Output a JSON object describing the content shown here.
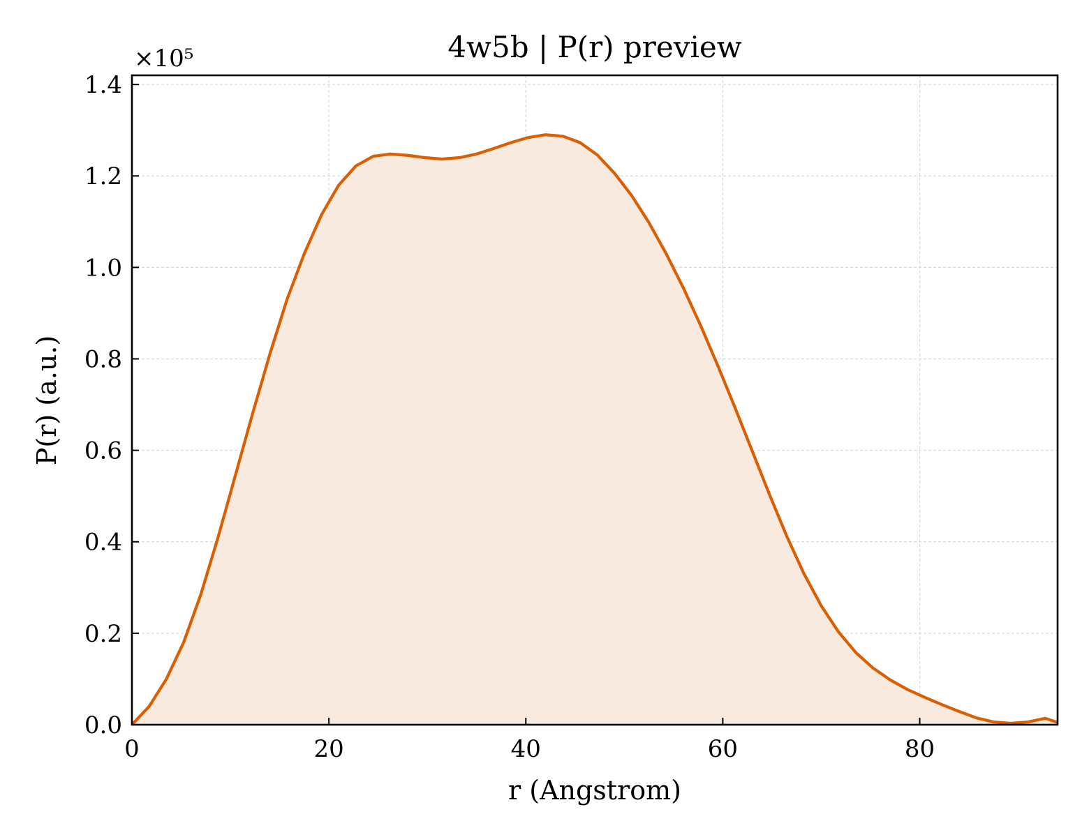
{
  "chart_data": {
    "type": "area",
    "title": "4w5b | P(r) preview",
    "xlabel": "r (Angstrom)",
    "ylabel": "P(r) (a.u.)",
    "y_multiplier_label": "×10⁵",
    "xlim": [
      0,
      94
    ],
    "ylim": [
      0,
      1.42
    ],
    "xticks": [
      0,
      20,
      40,
      60,
      80
    ],
    "yticks": [
      0.0,
      0.2,
      0.4,
      0.6,
      0.8,
      1.0,
      1.2,
      1.4
    ],
    "xtick_labels": [
      "0",
      "20",
      "40",
      "60",
      "80"
    ],
    "ytick_labels": [
      "0.0",
      "0.2",
      "0.4",
      "0.6",
      "0.8",
      "1.0",
      "1.2",
      "1.4"
    ],
    "grid": true,
    "line_color": "#d95f02",
    "fill_color": "#f8eadf",
    "series": [
      {
        "x": [
          0,
          1.75,
          3.5,
          5.25,
          7.0,
          8.75,
          10.5,
          12.25,
          14.0,
          15.75,
          17.5,
          19.25,
          21.0,
          22.75,
          24.5,
          26.25,
          28.0,
          29.75,
          31.5,
          33.25,
          35.0,
          36.75,
          38.5,
          40.25,
          42.0,
          43.75,
          45.5,
          47.25,
          49.0,
          50.75,
          52.5,
          54.25,
          56.0,
          57.75,
          59.5,
          61.25,
          63.0,
          64.75,
          66.5,
          68.25,
          70.0,
          71.75,
          73.5,
          75.25,
          77.0,
          78.75,
          80.5,
          82.25,
          84.0,
          85.75,
          87.5,
          89.25,
          91.0,
          92.75,
          94.0
        ],
        "values": [
          0.0,
          0.04,
          0.1,
          0.18,
          0.285,
          0.41,
          0.545,
          0.68,
          0.81,
          0.93,
          1.03,
          1.115,
          1.18,
          1.222,
          1.243,
          1.248,
          1.245,
          1.24,
          1.237,
          1.24,
          1.248,
          1.26,
          1.273,
          1.284,
          1.29,
          1.287,
          1.273,
          1.246,
          1.206,
          1.157,
          1.098,
          1.03,
          0.955,
          0.873,
          0.785,
          0.693,
          0.598,
          0.503,
          0.412,
          0.33,
          0.26,
          0.203,
          0.158,
          0.124,
          0.098,
          0.077,
          0.06,
          0.044,
          0.029,
          0.015,
          0.006,
          0.003,
          0.006,
          0.014,
          0.005
        ]
      }
    ]
  }
}
